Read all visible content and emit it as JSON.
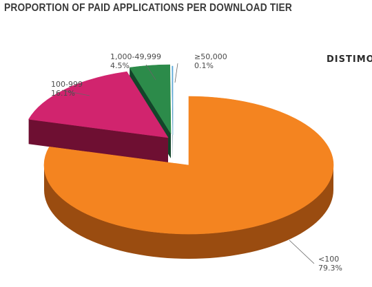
{
  "title": "PROPORTION OF PAID APPLICATIONS PER DOWNLOAD TIER",
  "brand": "DISTIMO",
  "chart_data": {
    "type": "pie",
    "title": "PROPORTION OF PAID APPLICATIONS PER DOWNLOAD TIER",
    "slices": [
      {
        "label": "<100",
        "value": 79.3,
        "value_text": "79.3%",
        "color": "#f48420",
        "side_color": "#9a4c10"
      },
      {
        "label": "100-999",
        "value": 16.1,
        "value_text": "16.1%",
        "color": "#d1246e",
        "side_color": "#6e0f32"
      },
      {
        "label": "1,000-49,999",
        "value": 4.5,
        "value_text": "4.5%",
        "color": "#2c8b4a",
        "side_color": "#13452a"
      },
      {
        "label": "≥50,000",
        "value": 0.1,
        "value_text": "0.1%",
        "color": "#5aa8d8",
        "side_color": "#2a5c7a"
      }
    ]
  }
}
